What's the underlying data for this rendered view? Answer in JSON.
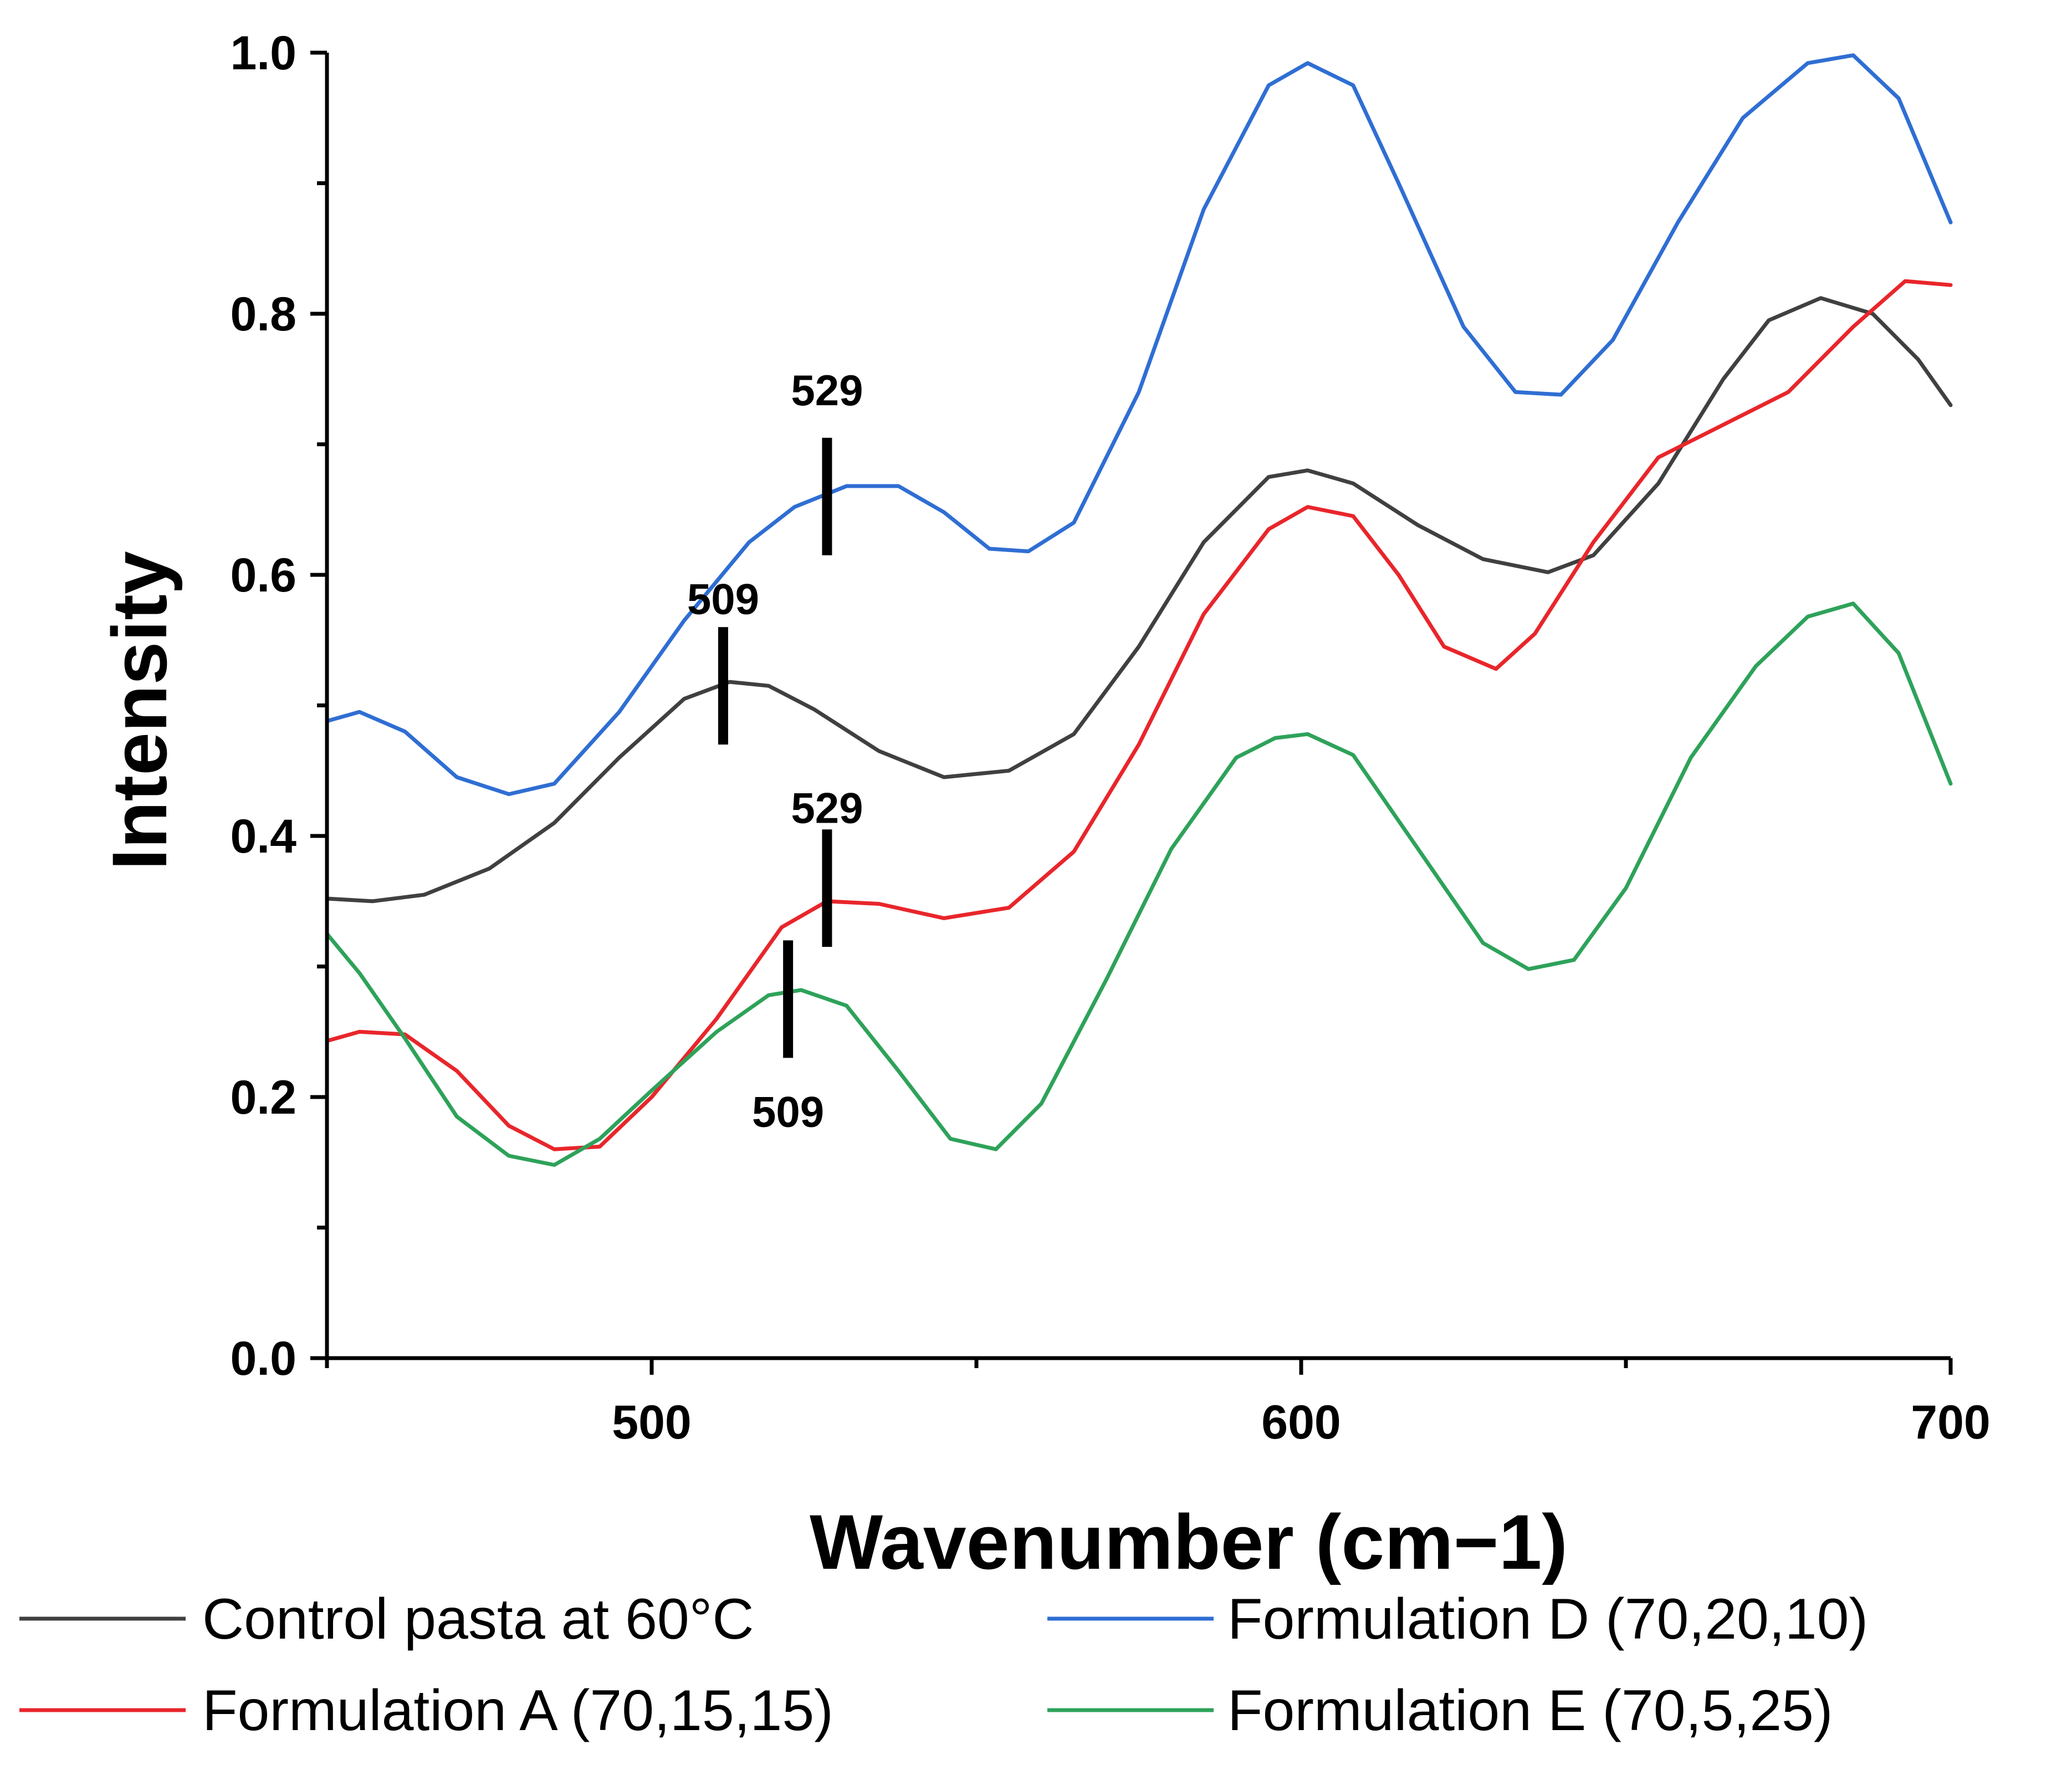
{
  "chart_data": {
    "type": "line",
    "title": "",
    "xlabel": "Wavenumber (cm−1)",
    "ylabel": "Intensity",
    "xlim": [
      450,
      700
    ],
    "ylim": [
      0.0,
      1.0
    ],
    "x_ticks": [
      500,
      600,
      700
    ],
    "x_tick_labels": [
      "500",
      "600",
      "700"
    ],
    "y_ticks": [
      0.0,
      0.2,
      0.4,
      0.6,
      0.8,
      1.0
    ],
    "y_tick_labels": [
      "0.0",
      "0.2",
      "0.4",
      "0.6",
      "0.8",
      "1.0"
    ],
    "grid": false,
    "legend_position": "bottom",
    "series": [
      {
        "name": "Control pasta at 60°C",
        "color": "#404040",
        "x": [
          450,
          457,
          465,
          475,
          485,
          495,
          505,
          512,
          518,
          525,
          535,
          545,
          555,
          565,
          575,
          585,
          595,
          601,
          608,
          618,
          628,
          638,
          645,
          655,
          665,
          672,
          680,
          688,
          695,
          700
        ],
        "y": [
          0.352,
          0.35,
          0.355,
          0.375,
          0.41,
          0.46,
          0.505,
          0.518,
          0.515,
          0.497,
          0.465,
          0.445,
          0.45,
          0.478,
          0.545,
          0.625,
          0.675,
          0.68,
          0.67,
          0.638,
          0.612,
          0.602,
          0.615,
          0.67,
          0.75,
          0.795,
          0.812,
          0.8,
          0.765,
          0.73
        ]
      },
      {
        "name": "Formulation A (70,15,15)",
        "color": "#e8262b",
        "x": [
          450,
          455,
          462,
          470,
          478,
          485,
          492,
          500,
          510,
          520,
          527,
          535,
          545,
          555,
          565,
          575,
          585,
          595,
          601,
          608,
          615,
          622,
          630,
          636,
          645,
          655,
          665,
          675,
          685,
          693,
          700
        ],
        "y": [
          0.243,
          0.25,
          0.248,
          0.22,
          0.178,
          0.16,
          0.162,
          0.2,
          0.26,
          0.33,
          0.35,
          0.348,
          0.337,
          0.345,
          0.388,
          0.47,
          0.57,
          0.635,
          0.652,
          0.645,
          0.6,
          0.545,
          0.528,
          0.555,
          0.625,
          0.69,
          0.715,
          0.74,
          0.79,
          0.825,
          0.822
        ]
      },
      {
        "name": "Formulation D (70,20,10)",
        "color": "#2f6ed3",
        "x": [
          450,
          455,
          462,
          470,
          478,
          485,
          495,
          505,
          515,
          522,
          530,
          538,
          545,
          552,
          558,
          565,
          575,
          585,
          595,
          601,
          608,
          615,
          625,
          633,
          640,
          648,
          658,
          668,
          678,
          685,
          692,
          700
        ],
        "y": [
          0.488,
          0.495,
          0.48,
          0.445,
          0.432,
          0.44,
          0.495,
          0.565,
          0.625,
          0.652,
          0.668,
          0.668,
          0.648,
          0.62,
          0.618,
          0.64,
          0.74,
          0.88,
          0.975,
          0.992,
          0.975,
          0.9,
          0.79,
          0.74,
          0.738,
          0.78,
          0.87,
          0.95,
          0.992,
          0.998,
          0.965,
          0.87
        ]
      },
      {
        "name": "Formulation E (70,5,25)",
        "color": "#2ea25a",
        "x": [
          450,
          455,
          462,
          470,
          478,
          485,
          492,
          500,
          510,
          518,
          523,
          530,
          538,
          546,
          553,
          560,
          570,
          580,
          590,
          596,
          601,
          608,
          618,
          628,
          635,
          642,
          650,
          660,
          670,
          678,
          685,
          692,
          700
        ],
        "y": [
          0.325,
          0.295,
          0.245,
          0.185,
          0.155,
          0.148,
          0.168,
          0.205,
          0.25,
          0.278,
          0.282,
          0.27,
          0.22,
          0.168,
          0.16,
          0.195,
          0.29,
          0.39,
          0.46,
          0.475,
          0.478,
          0.462,
          0.39,
          0.318,
          0.298,
          0.305,
          0.36,
          0.46,
          0.53,
          0.568,
          0.578,
          0.54,
          0.44
        ]
      }
    ],
    "annotations": [
      {
        "text": "509",
        "x": 511,
        "y_from": 0.47,
        "y_to": 0.56,
        "label_y": 0.57,
        "label_pos": "above"
      },
      {
        "text": "529",
        "x": 527,
        "y_from": 0.615,
        "y_to": 0.705,
        "label_y": 0.73,
        "label_pos": "above"
      },
      {
        "text": "529",
        "x": 527,
        "y_from": 0.315,
        "y_to": 0.405,
        "label_y": 0.41,
        "label_pos": "above"
      },
      {
        "text": "509",
        "x": 521,
        "y_from": 0.23,
        "y_to": 0.32,
        "label_y": 0.19,
        "label_pos": "below"
      }
    ]
  }
}
